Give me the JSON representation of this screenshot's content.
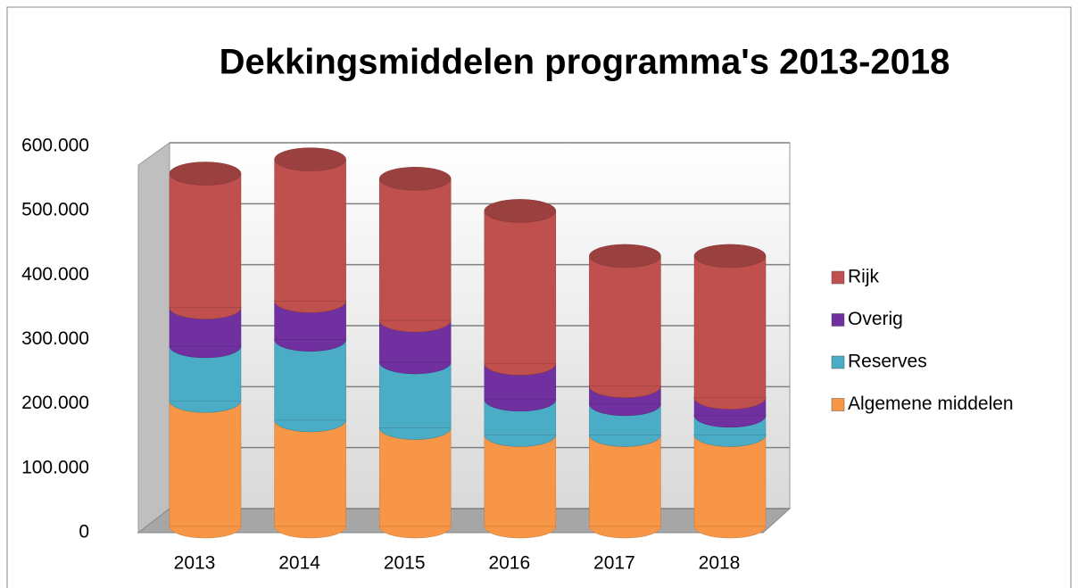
{
  "chart_data": {
    "type": "bar3d-stacked",
    "title": "Dekkingsmiddelen programma's  2013-2018",
    "categories": [
      "2013",
      "2014",
      "2015",
      "2016",
      "2017",
      "2018"
    ],
    "series": [
      {
        "name": "Algemene middelen",
        "color": "#f79646",
        "values": [
          195000,
          165000,
          153000,
          142000,
          142000,
          142000
        ]
      },
      {
        "name": "Reserves",
        "color": "#4bacc6",
        "values": [
          85000,
          125000,
          102000,
          55000,
          48000,
          30000
        ]
      },
      {
        "name": "Overig",
        "color": "#7030a0",
        "values": [
          60000,
          60000,
          65000,
          56000,
          28000,
          28000
        ]
      },
      {
        "name": "Rijk",
        "color": "#c0504d",
        "values": [
          208000,
          220000,
          220000,
          237000,
          202000,
          220000
        ]
      }
    ],
    "ylim": [
      0,
      600000
    ],
    "yticks": [
      0,
      {
        "value": 100000,
        "label": "100.000"
      },
      {
        "value": 200000,
        "label": "200.000"
      },
      {
        "value": 300000,
        "label": "300.000"
      },
      {
        "value": 400000,
        "label": "400.000"
      },
      {
        "value": 500000,
        "label": "500.000"
      },
      {
        "value": 600000,
        "label": "600.000"
      }
    ],
    "grid": true,
    "legend": "right"
  }
}
